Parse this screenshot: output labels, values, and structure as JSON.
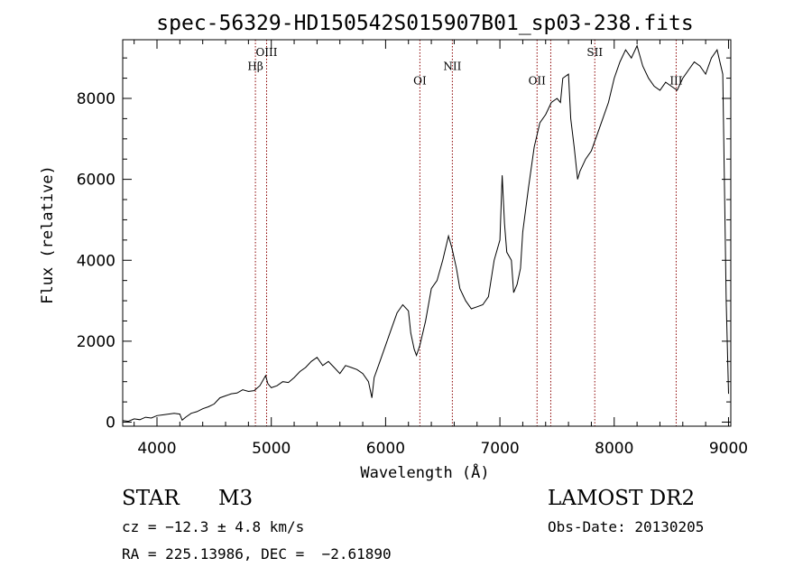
{
  "chart_data": {
    "type": "line",
    "title": "spec-56329-HD150542S015907B01_sp03-238.fits",
    "xlabel": "Wavelength (Å)",
    "ylabel": "Flux (relative)",
    "xlim": [
      3700,
      9020
    ],
    "ylim": [
      -100,
      9450
    ],
    "xticks": [
      4000,
      5000,
      6000,
      7000,
      8000,
      9000
    ],
    "yticks": [
      0,
      2000,
      4000,
      6000,
      8000
    ],
    "grid": false,
    "line_color": "#000000",
    "line_marker_color": "#8b0000",
    "spectral_lines": [
      {
        "label": "Hβ",
        "x": 4861,
        "label_y": 8700
      },
      {
        "label": "OIII",
        "x": 4959,
        "label_y": 9050
      },
      {
        "label": "OI",
        "x": 6300,
        "label_y": 8350
      },
      {
        "label": "NII",
        "x": 6584,
        "label_y": 8700
      },
      {
        "label": "OII",
        "x": 7325,
        "label_y": 8350
      },
      {
        "label": "SII",
        "x": 7830,
        "label_y": 9050
      },
      {
        "label": "",
        "x": 7445,
        "label_y": null
      },
      {
        "label": "III",
        "x": 8542,
        "label_y": 8350
      }
    ],
    "series": [
      {
        "points": [
          [
            3700,
            40
          ],
          [
            3750,
            20
          ],
          [
            3800,
            80
          ],
          [
            3850,
            60
          ],
          [
            3900,
            120
          ],
          [
            3950,
            100
          ],
          [
            4000,
            160
          ],
          [
            4050,
            180
          ],
          [
            4100,
            200
          ],
          [
            4150,
            220
          ],
          [
            4200,
            200
          ],
          [
            4220,
            50
          ],
          [
            4250,
            120
          ],
          [
            4300,
            220
          ],
          [
            4350,
            260
          ],
          [
            4400,
            330
          ],
          [
            4450,
            380
          ],
          [
            4500,
            450
          ],
          [
            4550,
            600
          ],
          [
            4600,
            650
          ],
          [
            4650,
            700
          ],
          [
            4700,
            720
          ],
          [
            4750,
            800
          ],
          [
            4800,
            760
          ],
          [
            4850,
            780
          ],
          [
            4900,
            900
          ],
          [
            4950,
            1150
          ],
          [
            4970,
            950
          ],
          [
            5000,
            850
          ],
          [
            5050,
            900
          ],
          [
            5100,
            1000
          ],
          [
            5150,
            980
          ],
          [
            5200,
            1100
          ],
          [
            5250,
            1250
          ],
          [
            5300,
            1350
          ],
          [
            5350,
            1500
          ],
          [
            5400,
            1600
          ],
          [
            5450,
            1400
          ],
          [
            5500,
            1500
          ],
          [
            5550,
            1350
          ],
          [
            5600,
            1200
          ],
          [
            5650,
            1400
          ],
          [
            5700,
            1350
          ],
          [
            5750,
            1300
          ],
          [
            5800,
            1200
          ],
          [
            5850,
            1000
          ],
          [
            5880,
            600
          ],
          [
            5900,
            1100
          ],
          [
            5950,
            1500
          ],
          [
            6000,
            1900
          ],
          [
            6050,
            2300
          ],
          [
            6100,
            2700
          ],
          [
            6150,
            2900
          ],
          [
            6200,
            2750
          ],
          [
            6220,
            2200
          ],
          [
            6250,
            1800
          ],
          [
            6270,
            1650
          ],
          [
            6300,
            1900
          ],
          [
            6350,
            2500
          ],
          [
            6400,
            3300
          ],
          [
            6450,
            3500
          ],
          [
            6500,
            4000
          ],
          [
            6550,
            4600
          ],
          [
            6580,
            4300
          ],
          [
            6620,
            3800
          ],
          [
            6650,
            3300
          ],
          [
            6700,
            3000
          ],
          [
            6750,
            2800
          ],
          [
            6800,
            2850
          ],
          [
            6850,
            2900
          ],
          [
            6900,
            3100
          ],
          [
            6950,
            4000
          ],
          [
            7000,
            4500
          ],
          [
            7020,
            6100
          ],
          [
            7040,
            4900
          ],
          [
            7060,
            4200
          ],
          [
            7100,
            4000
          ],
          [
            7120,
            3200
          ],
          [
            7150,
            3400
          ],
          [
            7180,
            3800
          ],
          [
            7200,
            4700
          ],
          [
            7250,
            5800
          ],
          [
            7300,
            6800
          ],
          [
            7350,
            7400
          ],
          [
            7400,
            7600
          ],
          [
            7450,
            7900
          ],
          [
            7500,
            8000
          ],
          [
            7530,
            7900
          ],
          [
            7550,
            8500
          ],
          [
            7600,
            8600
          ],
          [
            7620,
            7500
          ],
          [
            7650,
            6800
          ],
          [
            7680,
            6000
          ],
          [
            7700,
            6200
          ],
          [
            7750,
            6500
          ],
          [
            7800,
            6700
          ],
          [
            7850,
            7100
          ],
          [
            7900,
            7500
          ],
          [
            7950,
            7900
          ],
          [
            8000,
            8500
          ],
          [
            8050,
            8900
          ],
          [
            8100,
            9200
          ],
          [
            8150,
            9000
          ],
          [
            8200,
            9300
          ],
          [
            8250,
            8800
          ],
          [
            8300,
            8500
          ],
          [
            8350,
            8300
          ],
          [
            8400,
            8200
          ],
          [
            8450,
            8400
          ],
          [
            8500,
            8300
          ],
          [
            8550,
            8200
          ],
          [
            8600,
            8500
          ],
          [
            8650,
            8700
          ],
          [
            8700,
            8900
          ],
          [
            8750,
            8800
          ],
          [
            8800,
            8600
          ],
          [
            8850,
            9000
          ],
          [
            8900,
            9200
          ],
          [
            8950,
            8600
          ],
          [
            8980,
            3000
          ],
          [
            9000,
            700
          ]
        ]
      }
    ]
  },
  "info": {
    "object_class": "STAR",
    "subclass": "M3",
    "survey": "LAMOST DR2",
    "redshift_line": "cz = −12.3 ± 4.8 km/s",
    "obs_date": "Obs-Date: 20130205",
    "coords": "RA = 225.13986, DEC =  −2.61890"
  }
}
